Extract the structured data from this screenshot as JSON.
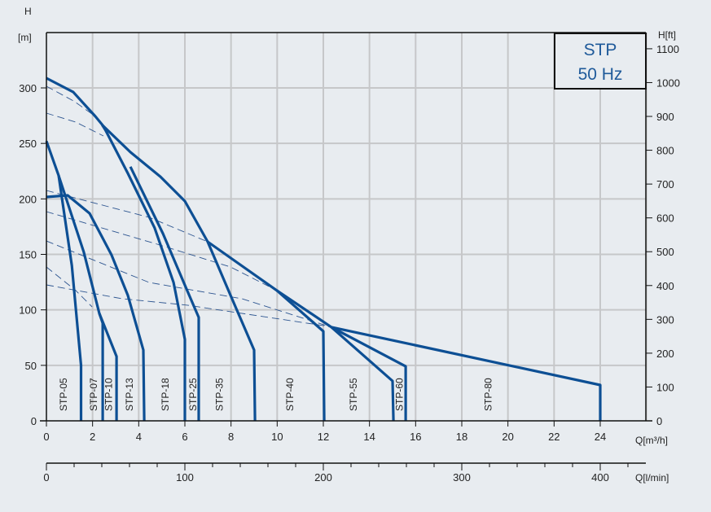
{
  "chart_data": {
    "type": "line",
    "title": "STP",
    "subtitle": "50 Hz",
    "xlabel": "Q[m³/h]",
    "x2label": "Q[l/min]",
    "ylabel_top": "H",
    "ylabel_unit": "[m]",
    "y2label": "H[ft]",
    "xlim": [
      0,
      26
    ],
    "ylim": [
      0,
      350
    ],
    "x_ticks": [
      0,
      2,
      4,
      6,
      8,
      10,
      12,
      14,
      16,
      18,
      20,
      22,
      24
    ],
    "y_ticks": [
      0,
      50,
      100,
      150,
      200,
      250,
      300
    ],
    "y2_ticks": [
      0,
      100,
      200,
      300,
      400,
      500,
      600,
      700,
      800,
      900,
      1000,
      1100
    ],
    "x2_ticks": [
      0,
      100,
      200,
      300,
      400
    ],
    "x2_minor_step": 20,
    "grid": true,
    "colors": {
      "curve": "#0d4f94",
      "dashed": "#2d5590",
      "grid": "#c6c7c9",
      "background": "#e8ecf0",
      "legend_text": "#1f5a9a"
    },
    "series": [
      {
        "name": "STP-05",
        "label_x": 0.75,
        "points": [
          [
            0,
            252
          ],
          [
            0.53,
            221
          ],
          [
            1.1,
            140
          ],
          [
            1.5,
            50
          ],
          [
            1.5,
            0
          ]
        ]
      },
      {
        "name": "STP-07",
        "label_x": 2.05,
        "points": [
          [
            0.53,
            221
          ],
          [
            1.62,
            152
          ],
          [
            2.29,
            97
          ],
          [
            2.44,
            88
          ],
          [
            2.44,
            0
          ]
        ]
      },
      {
        "name": "STP-10",
        "label_x": 2.7,
        "points": [
          [
            2.29,
            97
          ],
          [
            3.04,
            58
          ],
          [
            3.04,
            0
          ]
        ]
      },
      {
        "name": "STP-13",
        "label_x": 3.6,
        "points": [
          [
            0,
            201.7
          ],
          [
            0.92,
            203.2
          ],
          [
            1.87,
            187
          ],
          [
            2.82,
            149.6
          ],
          [
            3.53,
            113
          ],
          [
            4.2,
            63.8
          ],
          [
            4.24,
            0
          ]
        ]
      },
      {
        "name": "STP-18",
        "label_x": 5.15,
        "points": [
          [
            2.47,
            265.5
          ],
          [
            3.53,
            223
          ],
          [
            4.69,
            173.8
          ],
          [
            5.51,
            124.7
          ],
          [
            6.0,
            73.4
          ],
          [
            6.0,
            0
          ]
        ]
      },
      {
        "name": "STP-25",
        "label_x": 6.35,
        "points": [
          [
            3.64,
            229
          ],
          [
            5.05,
            168.7
          ],
          [
            6.1,
            117.4
          ],
          [
            6.6,
            93.2
          ],
          [
            6.6,
            0
          ]
        ]
      },
      {
        "name": "STP-35",
        "label_x": 7.5,
        "points": [
          [
            0,
            308.8
          ],
          [
            1.16,
            296.3
          ],
          [
            2.12,
            274.3
          ],
          [
            2.47,
            265.5
          ],
          [
            3.64,
            242.1
          ],
          [
            4.94,
            220
          ],
          [
            6.0,
            198
          ],
          [
            6.99,
            161.4
          ],
          [
            7.98,
            113
          ],
          [
            9.0,
            63.8
          ],
          [
            9.04,
            0
          ]
        ]
      },
      {
        "name": "STP-40",
        "label_x": 10.55,
        "points": [
          [
            6.99,
            161.4
          ],
          [
            9.99,
            117.4
          ],
          [
            12.0,
            80.7
          ],
          [
            12.04,
            0
          ]
        ]
      },
      {
        "name": "STP-55",
        "label_x": 13.3,
        "points": [
          [
            9.99,
            117.4
          ],
          [
            12.35,
            84.4
          ],
          [
            15.0,
            35.9
          ],
          [
            15.04,
            0
          ]
        ]
      },
      {
        "name": "STP-60",
        "label_x": 15.3,
        "points": [
          [
            12.35,
            84.4
          ],
          [
            15.57,
            49.1
          ],
          [
            15.57,
            0
          ]
        ]
      },
      {
        "name": "STP-80",
        "label_x": 19.15,
        "points": [
          [
            12.35,
            84.4
          ],
          [
            24,
            32.3
          ],
          [
            24,
            0
          ]
        ]
      }
    ],
    "dashed_series": [
      [
        [
          0,
          301.5
        ],
        [
          1.2,
          288
        ],
        [
          2.12,
          274.3
        ],
        [
          2.82,
          252.3
        ]
      ],
      [
        [
          0,
          277.3
        ],
        [
          1.27,
          269.2
        ],
        [
          2.47,
          256.7
        ]
      ],
      [
        [
          0,
          207.6
        ],
        [
          4.45,
          183.4
        ],
        [
          6.99,
          161.4
        ],
        [
          9.99,
          117.4
        ]
      ],
      [
        [
          0,
          188.5
        ],
        [
          4.8,
          159.2
        ],
        [
          7.98,
          138.6
        ],
        [
          9.99,
          117.4
        ]
      ],
      [
        [
          0,
          162
        ],
        [
          4.45,
          124.7
        ],
        [
          8.47,
          110
        ],
        [
          12.35,
          84.4
        ]
      ],
      [
        [
          0,
          138.6
        ],
        [
          1.27,
          117.4
        ],
        [
          1.98,
          102.7
        ]
      ],
      [
        [
          0,
          122.5
        ],
        [
          3.28,
          110
        ],
        [
          6.1,
          104.2
        ],
        [
          12.0,
          85.8
        ],
        [
          12.35,
          84.4
        ]
      ]
    ]
  }
}
